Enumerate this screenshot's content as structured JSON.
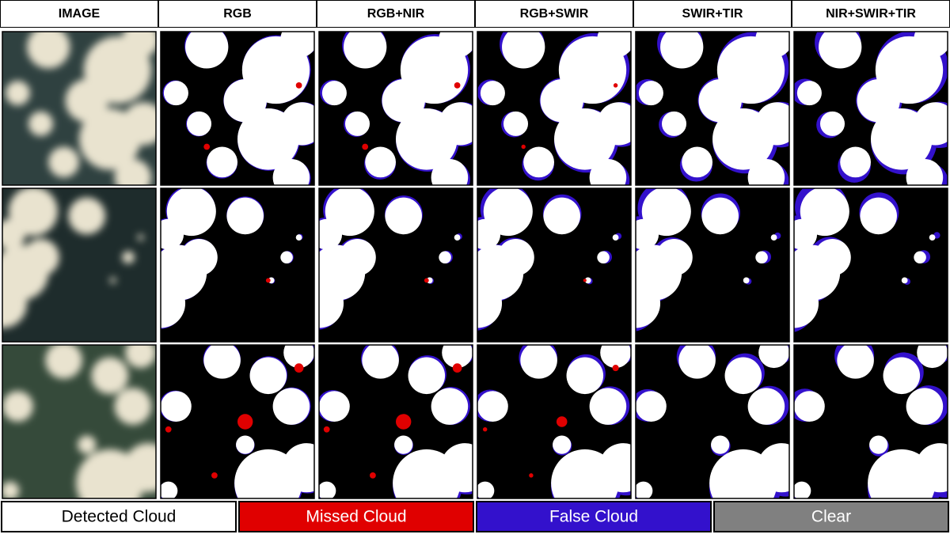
{
  "header": {
    "columns": [
      "IMAGE",
      "RGB",
      "RGB+NIR",
      "RGB+SWIR",
      "SWIR+TIR",
      "NIR+SWIR+TIR"
    ]
  },
  "legend": [
    {
      "label": "Detected Cloud",
      "color": "#ffffff",
      "text_color": "#000000"
    },
    {
      "label": "Missed Cloud",
      "color": "#e00000",
      "text_color": "#ffffff"
    },
    {
      "label": "False Cloud",
      "color": "#3311cc",
      "text_color": "#ffffff"
    },
    {
      "label": "Clear",
      "color": "#808080",
      "text_color": "#ffffff"
    }
  ]
}
